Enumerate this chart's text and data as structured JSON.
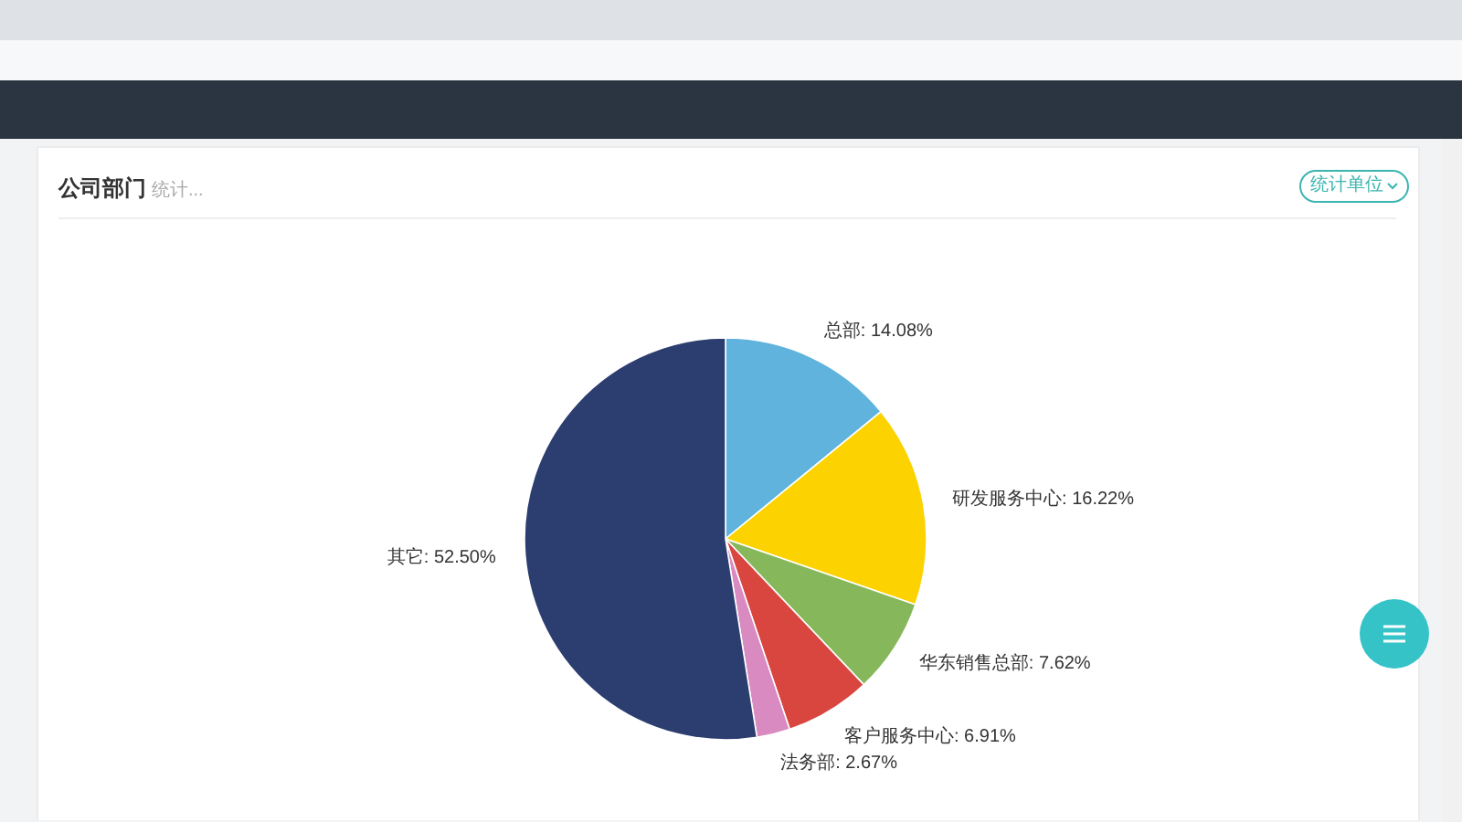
{
  "chart_data": {
    "type": "pie",
    "title": "公司部门",
    "subtitle": "统计...",
    "annotations": [
      "统计单位"
    ],
    "categories": [
      "总部",
      "研发服务中心",
      "华东销售总部",
      "客户服务中心",
      "法务部",
      "其它"
    ],
    "values": [
      14.08,
      16.22,
      7.62,
      6.91,
      2.67,
      52.5
    ],
    "colors": [
      "#5fb3dc",
      "#fcd200",
      "#86b85b",
      "#d9453f",
      "#d98ac0",
      "#2c3d6f"
    ],
    "value_labels": [
      "14.08%",
      "16.22%",
      "7.62%",
      "6.91%",
      "2.67%",
      "52.50%"
    ]
  }
}
